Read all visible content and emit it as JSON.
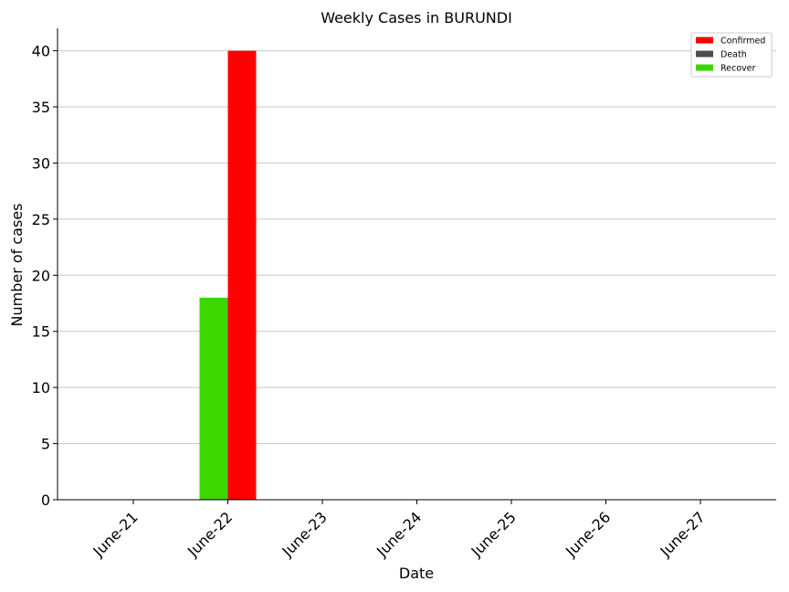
{
  "chart_data": {
    "type": "bar",
    "title": "Weekly Cases in BURUNDI",
    "xlabel": "Date",
    "ylabel": "Number of cases",
    "categories": [
      "June-21",
      "June-22",
      "June-23",
      "June-24",
      "June-25",
      "June-26",
      "June-27"
    ],
    "series": [
      {
        "name": "Confirmed",
        "color": "#ff0000",
        "values": [
          0,
          40,
          0,
          0,
          0,
          0,
          0
        ]
      },
      {
        "name": "Death",
        "color": "#4d4d4d",
        "values": [
          0,
          0,
          0,
          0,
          0,
          0,
          0
        ]
      },
      {
        "name": "Recover",
        "color": "#3dd600",
        "values": [
          0,
          18,
          0,
          0,
          0,
          0,
          0
        ]
      }
    ],
    "ylim": [
      0,
      42
    ],
    "yticks": [
      0,
      5,
      10,
      15,
      20,
      25,
      30,
      35,
      40
    ],
    "grid": "horizontal",
    "legend_position": "top-right"
  }
}
